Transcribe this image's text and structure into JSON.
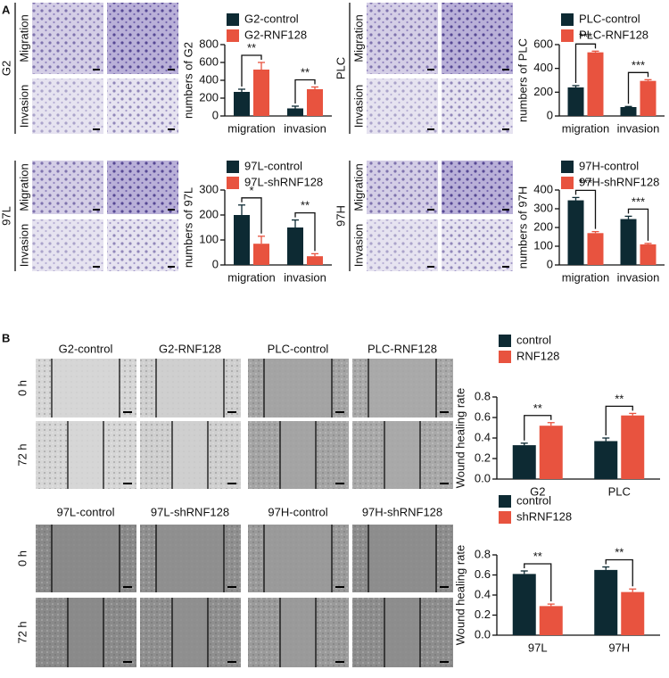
{
  "figure": {
    "panel_labels": [
      "A",
      "B"
    ],
    "cell_lines_a": [
      "G2",
      "PLC",
      "97L",
      "97H"
    ],
    "assays": [
      "Migration",
      "Invasion"
    ],
    "columns_b_top": [
      "G2-control",
      "G2-RNF128",
      "PLC-control",
      "PLC-RNF128"
    ],
    "columns_b_bottom": [
      "97L-control",
      "97L-shRNF128",
      "97H-control",
      "97H-shRNF128"
    ],
    "timepoints": [
      "0 h",
      "72 h"
    ]
  },
  "chart_data": [
    {
      "type": "bar",
      "y_label": "numbers of G2",
      "categories": [
        "migration",
        "invasion"
      ],
      "series": [
        {
          "name": "G2-control",
          "color": "#0d2a33",
          "values": [
            270,
            85
          ],
          "errors": [
            30,
            25
          ]
        },
        {
          "name": "G2-RNF128",
          "color": "#e8533f",
          "values": [
            520,
            300
          ],
          "errors": [
            80,
            25
          ]
        }
      ],
      "ylim": [
        0,
        800
      ],
      "yticks": [
        0,
        200,
        400,
        600,
        800
      ],
      "annotations": [
        "**",
        "**"
      ]
    },
    {
      "type": "bar",
      "y_label": "numbers of PLC",
      "categories": [
        "migration",
        "invasion"
      ],
      "series": [
        {
          "name": "PLC-control",
          "color": "#0d2a33",
          "values": [
            240,
            75
          ],
          "errors": [
            15,
            5
          ]
        },
        {
          "name": "PLC-RNF128",
          "color": "#e8533f",
          "values": [
            535,
            295
          ],
          "errors": [
            10,
            10
          ]
        }
      ],
      "ylim": [
        0,
        600
      ],
      "yticks": [
        0,
        200,
        400,
        600
      ],
      "annotations": [
        "***",
        "***"
      ]
    },
    {
      "type": "bar",
      "y_label": "numbers of 97L",
      "categories": [
        "migration",
        "invasion"
      ],
      "series": [
        {
          "name": "97L-control",
          "color": "#0d2a33",
          "values": [
            200,
            150
          ],
          "errors": [
            40,
            30
          ]
        },
        {
          "name": "97L-shRNF128",
          "color": "#e8533f",
          "values": [
            85,
            35
          ],
          "errors": [
            30,
            10
          ]
        }
      ],
      "ylim": [
        0,
        300
      ],
      "yticks": [
        0,
        100,
        200,
        300
      ],
      "annotations": [
        "*",
        "**"
      ]
    },
    {
      "type": "bar",
      "y_label": "numbers of 97H",
      "categories": [
        "migration",
        "invasion"
      ],
      "series": [
        {
          "name": "97H-control",
          "color": "#0d2a33",
          "values": [
            345,
            245
          ],
          "errors": [
            15,
            15
          ]
        },
        {
          "name": "97H-shRNF128",
          "color": "#e8533f",
          "values": [
            170,
            110
          ],
          "errors": [
            8,
            5
          ]
        }
      ],
      "ylim": [
        0,
        400
      ],
      "yticks": [
        0,
        100,
        200,
        300,
        400
      ],
      "annotations": [
        "***",
        "***"
      ]
    },
    {
      "type": "bar",
      "y_label": "Wound healing rate",
      "categories": [
        "G2",
        "PLC"
      ],
      "series": [
        {
          "name": "control",
          "color": "#0d2a33",
          "values": [
            0.33,
            0.37
          ],
          "errors": [
            0.02,
            0.03
          ]
        },
        {
          "name": "RNF128",
          "color": "#e8533f",
          "values": [
            0.52,
            0.62
          ],
          "errors": [
            0.03,
            0.02
          ]
        }
      ],
      "ylim": [
        0,
        0.8
      ],
      "yticks": [
        {
          "value": 0,
          "label": "0.0"
        },
        0.2,
        0.4,
        0.6,
        0.8
      ],
      "annotations": [
        "**",
        "**"
      ]
    },
    {
      "type": "bar",
      "y_label": "Wound healing rate",
      "categories": [
        "97L",
        "97H"
      ],
      "series": [
        {
          "name": "control",
          "color": "#0d2a33",
          "values": [
            0.61,
            0.65
          ],
          "errors": [
            0.03,
            0.03
          ]
        },
        {
          "name": "shRNF128",
          "color": "#e8533f",
          "values": [
            0.29,
            0.43
          ],
          "errors": [
            0.02,
            0.03
          ]
        }
      ],
      "ylim": [
        0,
        0.8
      ],
      "yticks": [
        {
          "value": 0,
          "label": "0.0"
        },
        0.2,
        0.4,
        0.6,
        0.8
      ],
      "annotations": [
        "**",
        "**"
      ]
    }
  ]
}
